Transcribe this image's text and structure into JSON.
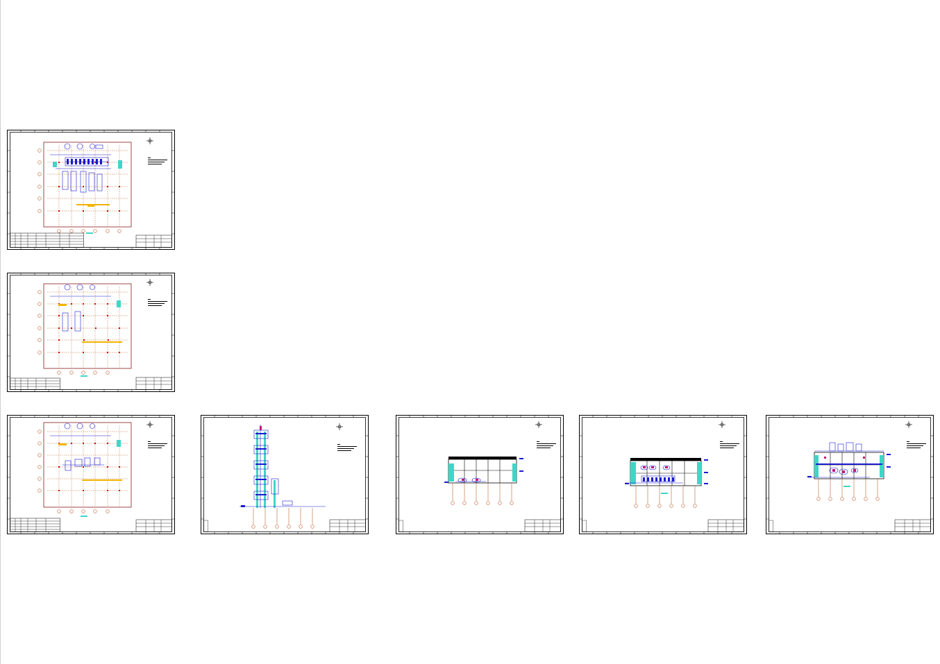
{
  "canvas": {
    "background": "#ffffff"
  },
  "colors": {
    "frame": "#000000",
    "building_outline": "#8b1a1a",
    "equipment": "#1a1ad1",
    "axis_bubble": "#c05a2a",
    "axis_line": "#b8662e",
    "hatch_cyan": "#3fd6c8",
    "highlight_yellow": "#f2b400",
    "magenta": "#c2187a",
    "red_marker": "#d80000"
  },
  "sheets": [
    {
      "id": "sheet-1",
      "kind": "plan-level-1"
    },
    {
      "id": "sheet-2",
      "kind": "plan-level-2"
    },
    {
      "id": "sheet-3",
      "kind": "plan-level-3"
    },
    {
      "id": "sheet-4",
      "kind": "tower-elevation"
    },
    {
      "id": "sheet-5",
      "kind": "section-a"
    },
    {
      "id": "sheet-6",
      "kind": "section-b"
    },
    {
      "id": "sheet-7",
      "kind": "section-c"
    }
  ],
  "icons": {
    "north_arrow": "compass-icon"
  }
}
